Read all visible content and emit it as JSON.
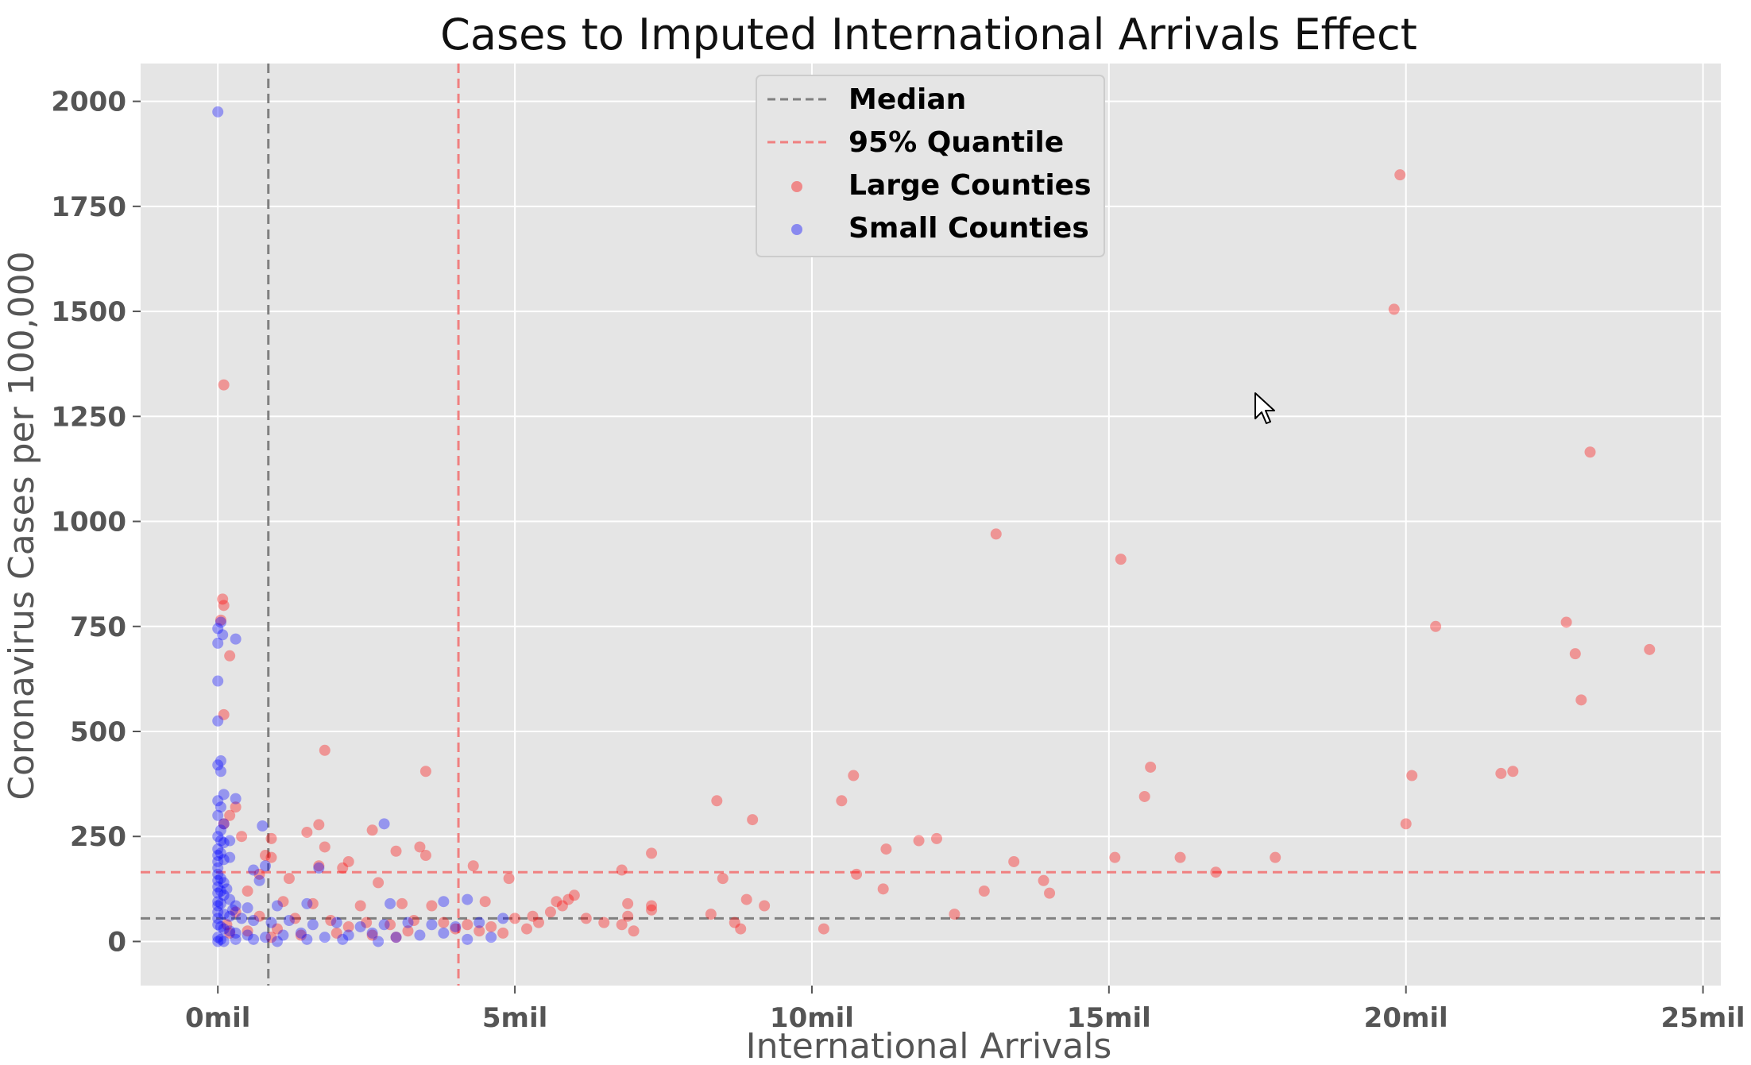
{
  "chart_data": {
    "type": "scatter",
    "title": "Cases to Imputed International Arrivals Effect",
    "xlabel": "International Arrivals",
    "ylabel": "Coronavirus Cases per 100,000",
    "xlim": [
      -1.3,
      25.3
    ],
    "ylim": [
      -105,
      2090
    ],
    "x_unit": "mil",
    "x_ticks": [
      0,
      5,
      10,
      15,
      20,
      25
    ],
    "x_tick_labels": [
      "0mil",
      "5mil",
      "10mil",
      "15mil",
      "20mil",
      "25mil"
    ],
    "y_ticks": [
      0,
      250,
      500,
      750,
      1000,
      1250,
      1500,
      1750,
      2000
    ],
    "y_tick_labels": [
      "0",
      "250",
      "500",
      "750",
      "1000",
      "1250",
      "1500",
      "1750",
      "2000"
    ],
    "grid": true,
    "background": "#e5e5e5",
    "legend_position": "top-center",
    "reference_lines": [
      {
        "name": "Median",
        "orientation": "vertical",
        "value": 0.85,
        "color": "#808080"
      },
      {
        "name": "Median",
        "orientation": "horizontal",
        "value": 55,
        "color": "#808080"
      },
      {
        "name": "95% Quantile",
        "orientation": "vertical",
        "value": 4.05,
        "color": "#f08080"
      },
      {
        "name": "95% Quantile",
        "orientation": "horizontal",
        "value": 165,
        "color": "#f08080"
      }
    ],
    "legend": [
      {
        "label": "Median",
        "kind": "line",
        "color": "#808080"
      },
      {
        "label": "95% Quantile",
        "kind": "line",
        "color": "#f08080"
      },
      {
        "label": "Large Counties",
        "kind": "point",
        "color": "#ff0000"
      },
      {
        "label": "Small Counties",
        "kind": "point",
        "color": "#0000ff"
      }
    ],
    "series": [
      {
        "name": "Large Counties",
        "color": "#ff0000",
        "points": [
          [
            0.1,
            1325
          ],
          [
            0.08,
            815
          ],
          [
            0.1,
            800
          ],
          [
            0.05,
            765
          ],
          [
            0.2,
            680
          ],
          [
            0.1,
            540
          ],
          [
            1.8,
            455
          ],
          [
            3.5,
            405
          ],
          [
            0.3,
            320
          ],
          [
            0.2,
            300
          ],
          [
            0.1,
            280
          ],
          [
            0.4,
            250
          ],
          [
            1.5,
            260
          ],
          [
            2.6,
            265
          ],
          [
            1.7,
            278
          ],
          [
            1.8,
            225
          ],
          [
            0.8,
            205
          ],
          [
            0.9,
            200
          ],
          [
            2.2,
            190
          ],
          [
            1.7,
            180
          ],
          [
            0.9,
            245
          ],
          [
            3.4,
            225
          ],
          [
            3.5,
            205
          ],
          [
            3.0,
            215
          ],
          [
            4.3,
            180
          ],
          [
            4.9,
            150
          ],
          [
            1.2,
            150
          ],
          [
            0.7,
            160
          ],
          [
            2.1,
            175
          ],
          [
            2.7,
            140
          ],
          [
            0.5,
            120
          ],
          [
            1.1,
            95
          ],
          [
            1.6,
            90
          ],
          [
            2.4,
            85
          ],
          [
            3.1,
            90
          ],
          [
            3.6,
            85
          ],
          [
            4.5,
            95
          ],
          [
            0.3,
            70
          ],
          [
            0.7,
            60
          ],
          [
            1.3,
            55
          ],
          [
            1.9,
            50
          ],
          [
            2.5,
            45
          ],
          [
            2.9,
            40
          ],
          [
            3.3,
            50
          ],
          [
            3.8,
            45
          ],
          [
            4.2,
            40
          ],
          [
            4.6,
            35
          ],
          [
            5.0,
            55
          ],
          [
            5.3,
            60
          ],
          [
            5.6,
            70
          ],
          [
            5.8,
            85
          ],
          [
            5.9,
            100
          ],
          [
            6.0,
            110
          ],
          [
            5.7,
            95
          ],
          [
            5.4,
            45
          ],
          [
            5.2,
            30
          ],
          [
            4.8,
            20
          ],
          [
            4.4,
            25
          ],
          [
            0.2,
            20
          ],
          [
            0.5,
            25
          ],
          [
            0.9,
            10
          ],
          [
            1.4,
            15
          ],
          [
            2.0,
            20
          ],
          [
            2.6,
            15
          ],
          [
            3.2,
            25
          ],
          [
            0.15,
            40
          ],
          [
            1.0,
            30
          ],
          [
            2.2,
            35
          ],
          [
            3.0,
            10
          ],
          [
            4.0,
            30
          ],
          [
            6.2,
            55
          ],
          [
            6.5,
            45
          ],
          [
            6.8,
            40
          ],
          [
            6.9,
            60
          ],
          [
            6.9,
            90
          ],
          [
            6.8,
            170
          ],
          [
            7.0,
            25
          ],
          [
            7.3,
            85
          ],
          [
            7.3,
            75
          ],
          [
            7.3,
            210
          ],
          [
            8.3,
            65
          ],
          [
            8.4,
            335
          ],
          [
            8.5,
            150
          ],
          [
            8.7,
            45
          ],
          [
            8.8,
            30
          ],
          [
            8.9,
            100
          ],
          [
            9.0,
            290
          ],
          [
            9.2,
            85
          ],
          [
            10.2,
            30
          ],
          [
            10.5,
            335
          ],
          [
            10.7,
            395
          ],
          [
            10.75,
            160
          ],
          [
            11.2,
            125
          ],
          [
            11.25,
            220
          ],
          [
            11.8,
            240
          ],
          [
            12.1,
            245
          ],
          [
            12.4,
            65
          ],
          [
            12.9,
            120
          ],
          [
            13.1,
            970
          ],
          [
            13.4,
            190
          ],
          [
            13.9,
            145
          ],
          [
            14.0,
            115
          ],
          [
            15.1,
            200
          ],
          [
            15.2,
            910
          ],
          [
            15.6,
            345
          ],
          [
            15.7,
            415
          ],
          [
            16.2,
            200
          ],
          [
            16.8,
            165
          ],
          [
            17.8,
            200
          ],
          [
            19.8,
            1505
          ],
          [
            19.9,
            1825
          ],
          [
            20.0,
            280
          ],
          [
            20.1,
            395
          ],
          [
            20.5,
            750
          ],
          [
            21.6,
            400
          ],
          [
            21.8,
            405
          ],
          [
            22.7,
            760
          ],
          [
            22.85,
            685
          ],
          [
            22.95,
            575
          ],
          [
            23.1,
            1165
          ],
          [
            24.1,
            695
          ]
        ]
      },
      {
        "name": "Small Counties",
        "color": "#0000ff",
        "points": [
          [
            0.0,
            1975
          ],
          [
            0.05,
            760
          ],
          [
            0.0,
            745
          ],
          [
            0.08,
            730
          ],
          [
            0.0,
            710
          ],
          [
            0.3,
            720
          ],
          [
            0.0,
            620
          ],
          [
            0.0,
            525
          ],
          [
            0.05,
            430
          ],
          [
            0.0,
            420
          ],
          [
            0.05,
            405
          ],
          [
            0.1,
            350
          ],
          [
            0.3,
            340
          ],
          [
            0.0,
            335
          ],
          [
            0.05,
            320
          ],
          [
            0.0,
            300
          ],
          [
            0.1,
            280
          ],
          [
            0.75,
            275
          ],
          [
            2.8,
            280
          ],
          [
            0.0,
            250
          ],
          [
            0.05,
            240
          ],
          [
            0.1,
            235
          ],
          [
            0.2,
            240
          ],
          [
            0.0,
            220
          ],
          [
            0.05,
            210
          ],
          [
            0.2,
            200
          ],
          [
            0.0,
            190
          ],
          [
            0.6,
            170
          ],
          [
            0.8,
            180
          ],
          [
            1.7,
            175
          ],
          [
            0.0,
            160
          ],
          [
            0.05,
            150
          ],
          [
            0.1,
            140
          ],
          [
            0.7,
            145
          ],
          [
            0.0,
            130
          ],
          [
            0.05,
            120
          ],
          [
            0.1,
            110
          ],
          [
            0.2,
            100
          ],
          [
            0.0,
            95
          ],
          [
            0.05,
            90
          ],
          [
            0.3,
            85
          ],
          [
            0.5,
            80
          ],
          [
            1.0,
            85
          ],
          [
            1.5,
            90
          ],
          [
            2.9,
            90
          ],
          [
            3.8,
            95
          ],
          [
            4.2,
            100
          ],
          [
            0.0,
            70
          ],
          [
            0.1,
            65
          ],
          [
            0.2,
            60
          ],
          [
            0.4,
            55
          ],
          [
            0.6,
            50
          ],
          [
            0.9,
            45
          ],
          [
            1.2,
            50
          ],
          [
            1.6,
            40
          ],
          [
            2.0,
            45
          ],
          [
            2.4,
            35
          ],
          [
            2.8,
            40
          ],
          [
            3.2,
            45
          ],
          [
            3.6,
            40
          ],
          [
            4.0,
            35
          ],
          [
            4.4,
            45
          ],
          [
            4.8,
            55
          ],
          [
            0.0,
            40
          ],
          [
            0.05,
            35
          ],
          [
            0.1,
            30
          ],
          [
            0.2,
            25
          ],
          [
            0.3,
            20
          ],
          [
            0.5,
            15
          ],
          [
            0.8,
            10
          ],
          [
            1.1,
            15
          ],
          [
            1.4,
            20
          ],
          [
            1.8,
            10
          ],
          [
            2.2,
            15
          ],
          [
            2.6,
            20
          ],
          [
            3.0,
            10
          ],
          [
            3.4,
            15
          ],
          [
            3.8,
            20
          ],
          [
            4.2,
            5
          ],
          [
            4.6,
            10
          ],
          [
            0.0,
            10
          ],
          [
            0.05,
            5
          ],
          [
            0.0,
            0
          ],
          [
            0.1,
            0
          ],
          [
            0.3,
            5
          ],
          [
            0.6,
            5
          ],
          [
            1.0,
            0
          ],
          [
            1.5,
            5
          ],
          [
            2.1,
            5
          ],
          [
            2.7,
            0
          ],
          [
            0.0,
            55
          ],
          [
            0.0,
            85
          ],
          [
            0.0,
            115
          ],
          [
            0.0,
            145
          ],
          [
            0.0,
            175
          ],
          [
            0.0,
            205
          ],
          [
            0.05,
            265
          ],
          [
            0.1,
            195
          ],
          [
            0.15,
            125
          ],
          [
            0.25,
            75
          ]
        ]
      }
    ]
  },
  "cursor_icon": "mouse-pointer-icon"
}
